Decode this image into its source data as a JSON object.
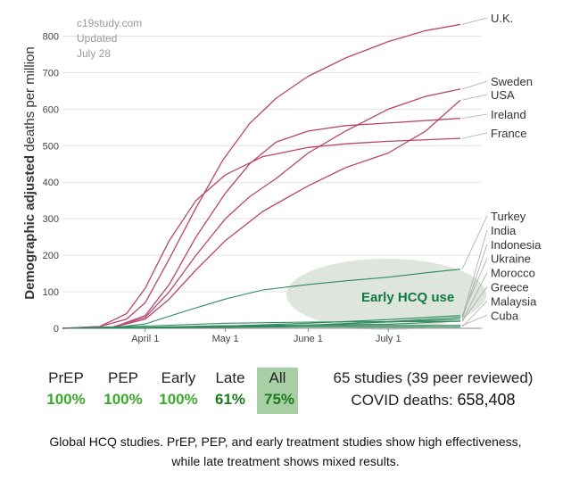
{
  "source": {
    "site": "c19study.com",
    "updated_label": "Updated",
    "updated_date": "July 28"
  },
  "chart_data": {
    "type": "line",
    "ylabel_bold": "Demographic adjusted",
    "ylabel_rest": " deaths per million",
    "ylim": [
      0,
      850
    ],
    "yticks": [
      0,
      100,
      200,
      300,
      400,
      500,
      600,
      700,
      800
    ],
    "xlim": [
      "2020-03-01",
      "2020-08-05"
    ],
    "xticks": [
      {
        "date": "2020-04-01",
        "label": "April 1"
      },
      {
        "date": "2020-05-01",
        "label": "May 1"
      },
      {
        "date": "2020-06-01",
        "label": "June 1"
      },
      {
        "date": "2020-07-01",
        "label": "July 1"
      }
    ],
    "colors": {
      "no_hcq": "#b8456f",
      "hcq": "#2f8a5e",
      "annotation": "#117a3e",
      "shade": "#dde5dc"
    },
    "annotation": "Early HCQ use",
    "series": [
      {
        "name": "U.K.",
        "group": "no_hcq",
        "points": [
          [
            "2020-03-01",
            0
          ],
          [
            "2020-03-15",
            5
          ],
          [
            "2020-03-25",
            25
          ],
          [
            "2020-04-01",
            70
          ],
          [
            "2020-04-10",
            190
          ],
          [
            "2020-04-20",
            330
          ],
          [
            "2020-04-30",
            460
          ],
          [
            "2020-05-10",
            560
          ],
          [
            "2020-05-20",
            630
          ],
          [
            "2020-06-01",
            690
          ],
          [
            "2020-06-15",
            740
          ],
          [
            "2020-07-01",
            785
          ],
          [
            "2020-07-15",
            815
          ],
          [
            "2020-07-28",
            832
          ]
        ]
      },
      {
        "name": "Sweden",
        "group": "no_hcq",
        "points": [
          [
            "2020-03-01",
            0
          ],
          [
            "2020-03-20",
            4
          ],
          [
            "2020-04-01",
            30
          ],
          [
            "2020-04-10",
            100
          ],
          [
            "2020-04-20",
            200
          ],
          [
            "2020-05-01",
            300
          ],
          [
            "2020-05-10",
            360
          ],
          [
            "2020-05-20",
            410
          ],
          [
            "2020-06-01",
            480
          ],
          [
            "2020-06-15",
            540
          ],
          [
            "2020-07-01",
            600
          ],
          [
            "2020-07-15",
            635
          ],
          [
            "2020-07-28",
            655
          ]
        ]
      },
      {
        "name": "USA",
        "group": "no_hcq",
        "points": [
          [
            "2020-03-01",
            0
          ],
          [
            "2020-03-20",
            3
          ],
          [
            "2020-04-01",
            25
          ],
          [
            "2020-04-10",
            80
          ],
          [
            "2020-04-20",
            160
          ],
          [
            "2020-05-01",
            240
          ],
          [
            "2020-05-15",
            320
          ],
          [
            "2020-06-01",
            390
          ],
          [
            "2020-06-15",
            440
          ],
          [
            "2020-07-01",
            480
          ],
          [
            "2020-07-15",
            540
          ],
          [
            "2020-07-28",
            625
          ]
        ]
      },
      {
        "name": "Ireland",
        "group": "no_hcq",
        "points": [
          [
            "2020-03-01",
            0
          ],
          [
            "2020-03-20",
            3
          ],
          [
            "2020-04-01",
            35
          ],
          [
            "2020-04-10",
            120
          ],
          [
            "2020-04-20",
            250
          ],
          [
            "2020-05-01",
            370
          ],
          [
            "2020-05-10",
            450
          ],
          [
            "2020-05-20",
            510
          ],
          [
            "2020-06-01",
            540
          ],
          [
            "2020-06-15",
            555
          ],
          [
            "2020-07-01",
            562
          ],
          [
            "2020-07-28",
            575
          ]
        ]
      },
      {
        "name": "France",
        "group": "no_hcq",
        "points": [
          [
            "2020-03-01",
            0
          ],
          [
            "2020-03-15",
            5
          ],
          [
            "2020-03-25",
            40
          ],
          [
            "2020-04-01",
            110
          ],
          [
            "2020-04-10",
            240
          ],
          [
            "2020-04-20",
            350
          ],
          [
            "2020-05-01",
            420
          ],
          [
            "2020-05-15",
            470
          ],
          [
            "2020-06-01",
            495
          ],
          [
            "2020-06-15",
            505
          ],
          [
            "2020-07-01",
            512
          ],
          [
            "2020-07-28",
            520
          ]
        ]
      },
      {
        "name": "Turkey",
        "group": "hcq",
        "points": [
          [
            "2020-03-01",
            0
          ],
          [
            "2020-03-20",
            2
          ],
          [
            "2020-04-01",
            12
          ],
          [
            "2020-04-15",
            45
          ],
          [
            "2020-05-01",
            80
          ],
          [
            "2020-05-15",
            105
          ],
          [
            "2020-06-01",
            120
          ],
          [
            "2020-06-15",
            130
          ],
          [
            "2020-07-01",
            140
          ],
          [
            "2020-07-15",
            152
          ],
          [
            "2020-07-28",
            162
          ]
        ]
      },
      {
        "name": "India",
        "group": "hcq",
        "points": [
          [
            "2020-03-01",
            0
          ],
          [
            "2020-04-01",
            1
          ],
          [
            "2020-05-01",
            3
          ],
          [
            "2020-06-01",
            8
          ],
          [
            "2020-07-01",
            18
          ],
          [
            "2020-07-28",
            30
          ]
        ]
      },
      {
        "name": "Indonesia",
        "group": "hcq",
        "points": [
          [
            "2020-03-01",
            0
          ],
          [
            "2020-04-01",
            1
          ],
          [
            "2020-05-01",
            4
          ],
          [
            "2020-06-01",
            9
          ],
          [
            "2020-07-01",
            17
          ],
          [
            "2020-07-28",
            25
          ]
        ]
      },
      {
        "name": "Ukraine",
        "group": "hcq",
        "points": [
          [
            "2020-03-01",
            0
          ],
          [
            "2020-04-01",
            1
          ],
          [
            "2020-05-01",
            6
          ],
          [
            "2020-06-01",
            14
          ],
          [
            "2020-07-01",
            24
          ],
          [
            "2020-07-28",
            35
          ]
        ]
      },
      {
        "name": "Morocco",
        "group": "hcq",
        "points": [
          [
            "2020-03-01",
            0
          ],
          [
            "2020-04-01",
            3
          ],
          [
            "2020-05-01",
            7
          ],
          [
            "2020-06-01",
            9
          ],
          [
            "2020-07-01",
            11
          ],
          [
            "2020-07-28",
            20
          ]
        ]
      },
      {
        "name": "Greece",
        "group": "hcq",
        "points": [
          [
            "2020-03-01",
            0
          ],
          [
            "2020-04-01",
            6
          ],
          [
            "2020-05-01",
            14
          ],
          [
            "2020-06-01",
            17
          ],
          [
            "2020-07-01",
            18
          ],
          [
            "2020-07-28",
            19
          ]
        ]
      },
      {
        "name": "Malaysia",
        "group": "hcq",
        "points": [
          [
            "2020-03-01",
            0
          ],
          [
            "2020-04-01",
            2
          ],
          [
            "2020-05-01",
            3
          ],
          [
            "2020-06-01",
            4
          ],
          [
            "2020-07-01",
            4
          ],
          [
            "2020-07-28",
            4
          ]
        ]
      },
      {
        "name": "Cuba",
        "group": "hcq",
        "points": [
          [
            "2020-03-01",
            0
          ],
          [
            "2020-04-01",
            1
          ],
          [
            "2020-05-01",
            7
          ],
          [
            "2020-06-01",
            7
          ],
          [
            "2020-07-01",
            8
          ],
          [
            "2020-07-28",
            8
          ]
        ]
      }
    ]
  },
  "stats": [
    {
      "label": "PrEP",
      "value": "100%",
      "color": "#3aaa2a"
    },
    {
      "label": "PEP",
      "value": "100%",
      "color": "#3aaa2a"
    },
    {
      "label": "Early",
      "value": "100%",
      "color": "#3aaa2a"
    },
    {
      "label": "Late",
      "value": "61%",
      "color": "#1e7a1e"
    },
    {
      "label": "All",
      "value": "75%",
      "color": "#1e7a1e"
    }
  ],
  "summary": {
    "studies": "65 studies (39 peer reviewed)",
    "deaths_label": "COVID deaths: ",
    "deaths_value": "658,408"
  },
  "caption": {
    "line1": "Global HCQ studies. PrEP, PEP, and early treatment studies show high effectiveness,",
    "line2": "while late treatment shows mixed results."
  }
}
